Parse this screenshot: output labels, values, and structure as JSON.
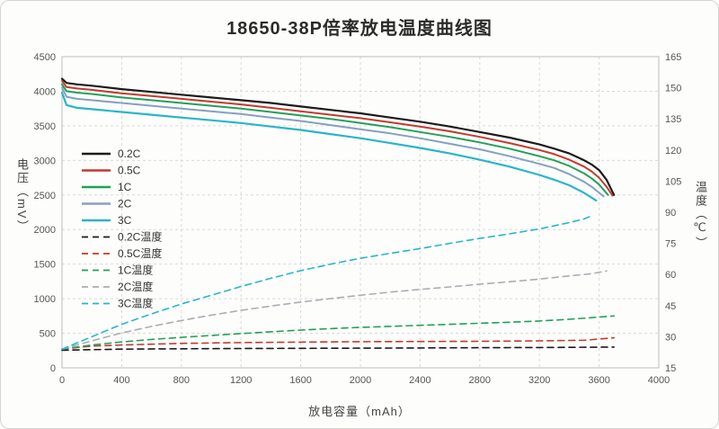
{
  "chart_data": {
    "type": "line",
    "title": "18650-38P倍率放电温度曲线图",
    "xlabel": "放电容量（mAh）",
    "ylabel_left": "电压（mV）",
    "ylabel_right": "温度（℃）",
    "xlim": [
      0,
      4000
    ],
    "ylim_left": [
      0,
      4500
    ],
    "ylim_right": [
      15,
      165
    ],
    "x_ticks": [
      0,
      400,
      800,
      1200,
      1600,
      2000,
      2400,
      2800,
      3200,
      3600,
      4000
    ],
    "y_left_ticks": [
      0,
      500,
      1000,
      1500,
      2000,
      2500,
      3000,
      3500,
      4000,
      4500
    ],
    "y_right_ticks": [
      15,
      30,
      45,
      60,
      75,
      90,
      105,
      120,
      135,
      150,
      165
    ],
    "grid": true,
    "legend_position": "inside-left",
    "colors": {
      "c02": "#1b1b1b",
      "c05": "#c43a2f",
      "c1": "#22a05a",
      "c2": "#85a0bf",
      "c3": "#27b6c9",
      "c2t": "#a8aeb4",
      "grid": "#d9d9d9",
      "axis": "#bdbdbd"
    },
    "series": [
      {
        "id": "v0-2c",
        "name": "0.2C",
        "axis": "left",
        "dashed": false,
        "color": "#1b1b1b",
        "width": 2.2,
        "points": [
          [
            0,
            4180
          ],
          [
            30,
            4120
          ],
          [
            100,
            4100
          ],
          [
            200,
            4080
          ],
          [
            400,
            4030
          ],
          [
            600,
            3990
          ],
          [
            800,
            3950
          ],
          [
            1000,
            3910
          ],
          [
            1200,
            3870
          ],
          [
            1400,
            3830
          ],
          [
            1600,
            3780
          ],
          [
            1800,
            3730
          ],
          [
            2000,
            3680
          ],
          [
            2200,
            3620
          ],
          [
            2400,
            3560
          ],
          [
            2600,
            3490
          ],
          [
            2800,
            3410
          ],
          [
            3000,
            3330
          ],
          [
            3200,
            3230
          ],
          [
            3300,
            3170
          ],
          [
            3400,
            3100
          ],
          [
            3500,
            3000
          ],
          [
            3550,
            2940
          ],
          [
            3600,
            2860
          ],
          [
            3650,
            2720
          ],
          [
            3700,
            2500
          ]
        ]
      },
      {
        "id": "v0-5c",
        "name": "0.5C",
        "axis": "left",
        "dashed": false,
        "color": "#c43a2f",
        "width": 2,
        "points": [
          [
            0,
            4150
          ],
          [
            30,
            4060
          ],
          [
            100,
            4040
          ],
          [
            200,
            4020
          ],
          [
            400,
            3970
          ],
          [
            600,
            3930
          ],
          [
            800,
            3890
          ],
          [
            1000,
            3850
          ],
          [
            1200,
            3810
          ],
          [
            1400,
            3760
          ],
          [
            1600,
            3710
          ],
          [
            1800,
            3660
          ],
          [
            2000,
            3610
          ],
          [
            2200,
            3550
          ],
          [
            2400,
            3490
          ],
          [
            2600,
            3420
          ],
          [
            2800,
            3340
          ],
          [
            3000,
            3250
          ],
          [
            3200,
            3150
          ],
          [
            3300,
            3090
          ],
          [
            3400,
            3010
          ],
          [
            3500,
            2910
          ],
          [
            3550,
            2840
          ],
          [
            3600,
            2750
          ],
          [
            3650,
            2620
          ],
          [
            3690,
            2490
          ]
        ]
      },
      {
        "id": "v1c",
        "name": "1C",
        "axis": "left",
        "dashed": false,
        "color": "#22a05a",
        "width": 2,
        "points": [
          [
            0,
            4100
          ],
          [
            30,
            4000
          ],
          [
            100,
            3980
          ],
          [
            200,
            3960
          ],
          [
            400,
            3910
          ],
          [
            600,
            3870
          ],
          [
            800,
            3830
          ],
          [
            1000,
            3790
          ],
          [
            1200,
            3750
          ],
          [
            1400,
            3700
          ],
          [
            1600,
            3650
          ],
          [
            1800,
            3600
          ],
          [
            2000,
            3540
          ],
          [
            2200,
            3480
          ],
          [
            2400,
            3410
          ],
          [
            2600,
            3340
          ],
          [
            2800,
            3260
          ],
          [
            3000,
            3170
          ],
          [
            3200,
            3060
          ],
          [
            3300,
            3000
          ],
          [
            3400,
            2920
          ],
          [
            3500,
            2810
          ],
          [
            3550,
            2740
          ],
          [
            3600,
            2650
          ],
          [
            3660,
            2500
          ]
        ]
      },
      {
        "id": "v2c",
        "name": "2C",
        "axis": "left",
        "dashed": false,
        "color": "#85a0bf",
        "width": 2,
        "points": [
          [
            0,
            4050
          ],
          [
            30,
            3920
          ],
          [
            100,
            3890
          ],
          [
            200,
            3870
          ],
          [
            400,
            3830
          ],
          [
            600,
            3790
          ],
          [
            800,
            3750
          ],
          [
            1000,
            3710
          ],
          [
            1200,
            3670
          ],
          [
            1400,
            3620
          ],
          [
            1600,
            3570
          ],
          [
            1800,
            3510
          ],
          [
            2000,
            3450
          ],
          [
            2200,
            3390
          ],
          [
            2400,
            3320
          ],
          [
            2600,
            3240
          ],
          [
            2800,
            3160
          ],
          [
            3000,
            3060
          ],
          [
            3200,
            2950
          ],
          [
            3300,
            2890
          ],
          [
            3400,
            2800
          ],
          [
            3500,
            2690
          ],
          [
            3550,
            2620
          ],
          [
            3630,
            2480
          ]
        ]
      },
      {
        "id": "v3c",
        "name": "3C",
        "axis": "left",
        "dashed": false,
        "color": "#27b6c9",
        "width": 2.2,
        "points": [
          [
            0,
            3980
          ],
          [
            30,
            3800
          ],
          [
            100,
            3760
          ],
          [
            200,
            3740
          ],
          [
            400,
            3700
          ],
          [
            600,
            3660
          ],
          [
            800,
            3620
          ],
          [
            1000,
            3580
          ],
          [
            1200,
            3540
          ],
          [
            1400,
            3490
          ],
          [
            1600,
            3440
          ],
          [
            1800,
            3380
          ],
          [
            2000,
            3320
          ],
          [
            2200,
            3250
          ],
          [
            2400,
            3180
          ],
          [
            2600,
            3100
          ],
          [
            2800,
            3010
          ],
          [
            3000,
            2910
          ],
          [
            3200,
            2790
          ],
          [
            3300,
            2720
          ],
          [
            3400,
            2640
          ],
          [
            3500,
            2530
          ],
          [
            3580,
            2420
          ]
        ]
      },
      {
        "id": "t0-2c",
        "name": "0.2C温度",
        "axis": "right",
        "dashed": true,
        "color": "#1b1b1b",
        "width": 1.6,
        "points": [
          [
            0,
            23.5
          ],
          [
            400,
            24
          ],
          [
            800,
            24.2
          ],
          [
            1200,
            24.3
          ],
          [
            1600,
            24.4
          ],
          [
            2000,
            24.5
          ],
          [
            2400,
            24.6
          ],
          [
            2800,
            24.7
          ],
          [
            3200,
            24.8
          ],
          [
            3700,
            25
          ]
        ]
      },
      {
        "id": "t0-5c",
        "name": "0.5C温度",
        "axis": "right",
        "dashed": true,
        "color": "#c43a2f",
        "width": 1.6,
        "points": [
          [
            0,
            24
          ],
          [
            200,
            25.5
          ],
          [
            400,
            26
          ],
          [
            800,
            26.8
          ],
          [
            1200,
            27.2
          ],
          [
            1600,
            27.4
          ],
          [
            2000,
            27.6
          ],
          [
            2400,
            27.7
          ],
          [
            2800,
            27.8
          ],
          [
            3200,
            28
          ],
          [
            3500,
            28.3
          ],
          [
            3700,
            29.5
          ]
        ]
      },
      {
        "id": "t1c",
        "name": "1C温度",
        "axis": "right",
        "dashed": true,
        "color": "#22a05a",
        "width": 1.6,
        "points": [
          [
            0,
            24
          ],
          [
            200,
            26
          ],
          [
            400,
            27.5
          ],
          [
            600,
            28.7
          ],
          [
            800,
            29.7
          ],
          [
            1000,
            30.6
          ],
          [
            1200,
            31.5
          ],
          [
            1400,
            32.4
          ],
          [
            1600,
            33.2
          ],
          [
            1800,
            33.9
          ],
          [
            2000,
            34.5
          ],
          [
            2200,
            35
          ],
          [
            2400,
            35.5
          ],
          [
            2600,
            36
          ],
          [
            2800,
            36.5
          ],
          [
            3000,
            37
          ],
          [
            3200,
            37.6
          ],
          [
            3400,
            38.4
          ],
          [
            3550,
            39.2
          ],
          [
            3700,
            40
          ]
        ]
      },
      {
        "id": "t2c",
        "name": "2C温度",
        "axis": "right",
        "dashed": true,
        "color": "#a8aeb4",
        "width": 1.6,
        "points": [
          [
            0,
            24
          ],
          [
            200,
            28
          ],
          [
            400,
            31.8
          ],
          [
            600,
            35
          ],
          [
            800,
            37.8
          ],
          [
            1000,
            40.4
          ],
          [
            1200,
            42.7
          ],
          [
            1400,
            44.8
          ],
          [
            1600,
            46.7
          ],
          [
            1800,
            48.4
          ],
          [
            2000,
            50
          ],
          [
            2200,
            51.5
          ],
          [
            2400,
            52.8
          ],
          [
            2600,
            54
          ],
          [
            2800,
            55.3
          ],
          [
            3000,
            56.5
          ],
          [
            3200,
            57.8
          ],
          [
            3400,
            59.3
          ],
          [
            3550,
            60.4
          ],
          [
            3650,
            61.7
          ]
        ]
      },
      {
        "id": "t3c",
        "name": "3C温度",
        "axis": "right",
        "dashed": true,
        "color": "#27b6c9",
        "width": 1.6,
        "points": [
          [
            0,
            24
          ],
          [
            200,
            30
          ],
          [
            400,
            36
          ],
          [
            600,
            41
          ],
          [
            800,
            45.8
          ],
          [
            1000,
            50
          ],
          [
            1200,
            54.2
          ],
          [
            1400,
            58.2
          ],
          [
            1600,
            61.8
          ],
          [
            1800,
            65
          ],
          [
            2000,
            67.8
          ],
          [
            2200,
            70.2
          ],
          [
            2400,
            72.5
          ],
          [
            2600,
            75
          ],
          [
            2800,
            77.4
          ],
          [
            3000,
            79.6
          ],
          [
            3200,
            82
          ],
          [
            3400,
            85
          ],
          [
            3500,
            86.8
          ],
          [
            3550,
            88.3
          ]
        ]
      }
    ]
  }
}
